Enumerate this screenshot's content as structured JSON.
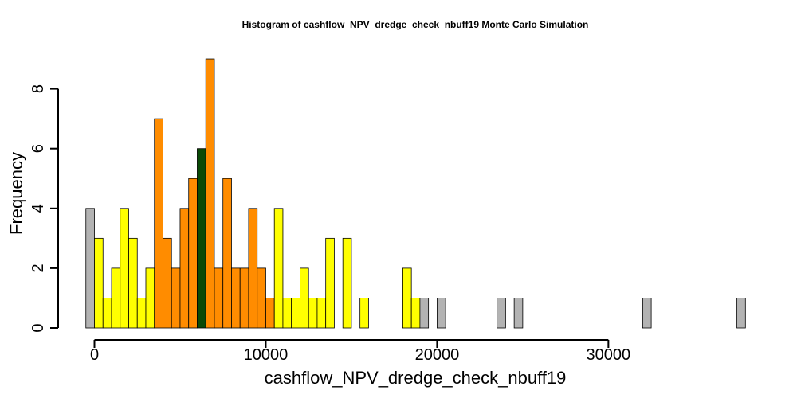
{
  "chart_data": {
    "type": "bar",
    "title": "Histogram of  cashflow_NPV_dredge_check_nbuff19  Monte Carlo Simulation",
    "xlabel": "cashflow_NPV_dredge_check_nbuff19",
    "ylabel": "Frequency",
    "x_start": -500,
    "bin_width": 500,
    "xlim": [
      -500,
      37500
    ],
    "ylim": [
      0,
      9
    ],
    "x_ticks": [
      0,
      10000,
      20000,
      30000
    ],
    "x_tick_labels": [
      "0",
      "10000",
      "20000",
      "30000"
    ],
    "y_ticks": [
      0,
      2,
      4,
      6,
      8
    ],
    "y_tick_labels": [
      "0",
      "2",
      "4",
      "6",
      "8"
    ],
    "colors": {
      "gray": "#b3b3b3",
      "yellow": "#ffff00",
      "orange": "#ff8c00",
      "darkgreen": "#0a4a06"
    },
    "counts": [
      4,
      3,
      1,
      2,
      4,
      3,
      1,
      2,
      7,
      3,
      2,
      4,
      5,
      6,
      9,
      2,
      5,
      2,
      2,
      4,
      2,
      1,
      4,
      1,
      1,
      2,
      1,
      1,
      3,
      0,
      3,
      0,
      1,
      0,
      0,
      0,
      0,
      2,
      1,
      1,
      0,
      1,
      0,
      0,
      0,
      0,
      0,
      0,
      1,
      0,
      1,
      0,
      0,
      0,
      0,
      0,
      0,
      0,
      0,
      0,
      0,
      0,
      0,
      0,
      0,
      1,
      0,
      0,
      0,
      0,
      0,
      0,
      0,
      0,
      0,
      0,
      1
    ],
    "bar_colors": [
      "gray",
      "yellow",
      "yellow",
      "yellow",
      "yellow",
      "yellow",
      "yellow",
      "yellow",
      "orange",
      "orange",
      "orange",
      "orange",
      "orange",
      "darkgreen",
      "orange",
      "orange",
      "orange",
      "orange",
      "orange",
      "orange",
      "orange",
      "orange",
      "yellow",
      "yellow",
      "yellow",
      "yellow",
      "yellow",
      "yellow",
      "yellow",
      "yellow",
      "yellow",
      "yellow",
      "yellow",
      "yellow",
      "yellow",
      "yellow",
      "yellow",
      "yellow",
      "yellow",
      "gray",
      "gray",
      "gray",
      "gray",
      "gray",
      "gray",
      "gray",
      "gray",
      "gray",
      "gray",
      "gray",
      "gray",
      "gray",
      "gray",
      "gray",
      "gray",
      "gray",
      "gray",
      "gray",
      "gray",
      "gray",
      "gray",
      "gray",
      "gray",
      "gray",
      "gray",
      "gray",
      "gray",
      "gray",
      "gray",
      "gray",
      "gray",
      "gray",
      "gray",
      "gray",
      "gray",
      "gray",
      "gray"
    ]
  }
}
